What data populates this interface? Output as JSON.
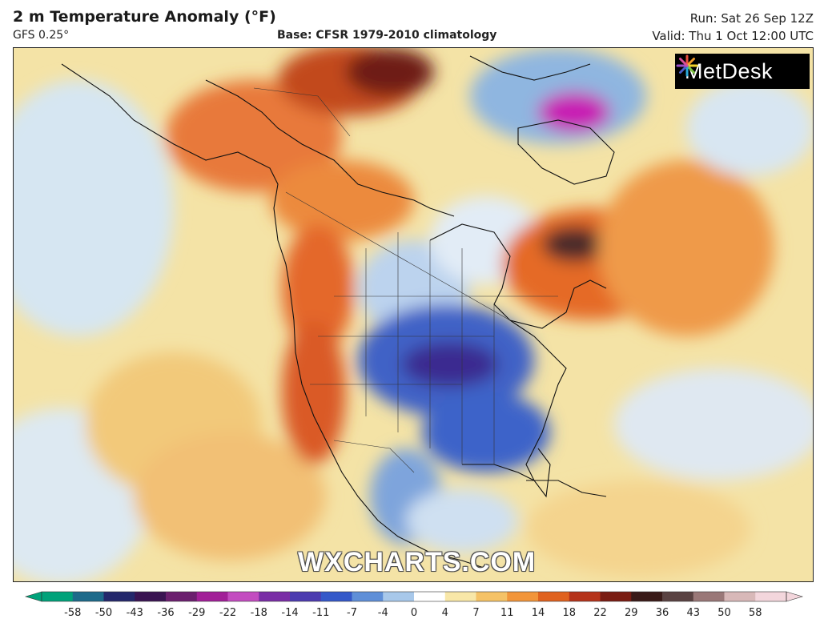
{
  "header": {
    "title": "2 m Temperature Anomaly (°F)",
    "model": "GFS 0.25°",
    "base": "Base: CFSR 1979-2010 climatology",
    "run": "Run: Sat 26 Sep 12Z",
    "valid": "Valid: Thu 1 Oct 12:00 UTC"
  },
  "logo": {
    "text": "MetDesk",
    "icon": "starburst-logo-icon"
  },
  "watermark": "WXCHARTS.COM",
  "legend": {
    "ticks": [
      "-58",
      "-50",
      "-43",
      "-36",
      "-29",
      "-22",
      "-18",
      "-14",
      "-11",
      "-7",
      "-4",
      "0",
      "4",
      "7",
      "11",
      "14",
      "18",
      "22",
      "29",
      "36",
      "43",
      "50",
      "58"
    ],
    "colors": [
      "#00a27a",
      "#1d6a8a",
      "#24286b",
      "#3a1452",
      "#6b1f6e",
      "#a21f98",
      "#c34cc0",
      "#7a2ea6",
      "#4c3bb0",
      "#3458c9",
      "#5f8fd8",
      "#a8c8ea",
      "#ffffff",
      "#f8e7a8",
      "#f5c266",
      "#f2953a",
      "#e0621f",
      "#b5331a",
      "#7a1c12",
      "#3a1a18",
      "#5a4242",
      "#9a7878",
      "#d8b8b8",
      "#f3d6dc"
    ]
  }
}
